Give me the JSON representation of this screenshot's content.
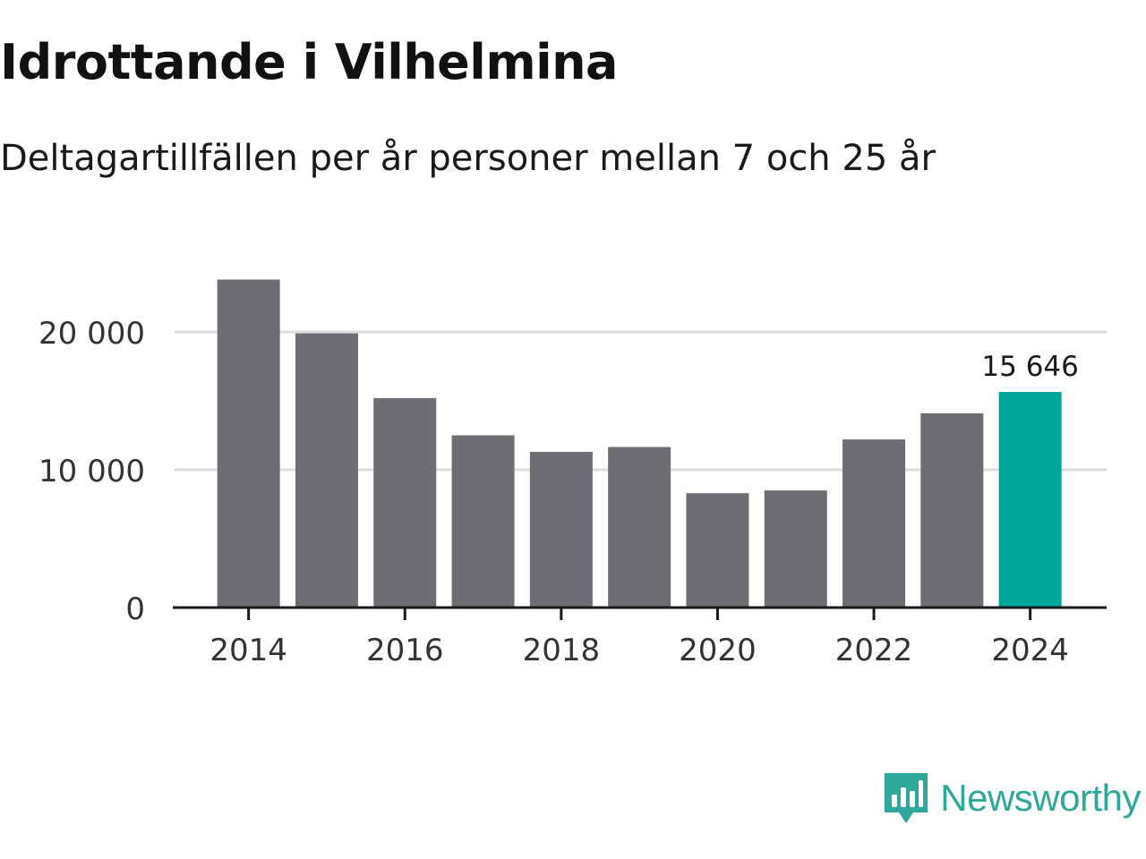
{
  "header": {
    "title": "Idrottande i Vilhelmina",
    "subtitle": "Deltagartillfällen per år personer mellan 7 och 25 år"
  },
  "brand": {
    "name": "Newsworthy",
    "icon": "newsworthy-logo-icon"
  },
  "colors": {
    "bar": "#6e6d73",
    "highlight": "#00a59a",
    "grid": "#dddddd",
    "axis": "#1a1a1a",
    "brand": "#2ea89a"
  },
  "chart_data": {
    "type": "bar",
    "title": "Idrottande i Vilhelmina",
    "subtitle": "Deltagartillfällen per år personer mellan 7 och 25 år",
    "xlabel": "",
    "ylabel": "",
    "categories": [
      "2014",
      "2015",
      "2016",
      "2017",
      "2018",
      "2019",
      "2020",
      "2021",
      "2022",
      "2023",
      "2024"
    ],
    "values": [
      23800,
      19900,
      15200,
      12500,
      11300,
      11650,
      8300,
      8500,
      12200,
      14100,
      15646
    ],
    "highlight_index": 10,
    "highlight_label": "15 646",
    "ylim": [
      0,
      25000
    ],
    "yticks": [
      {
        "value": 0,
        "label": "0"
      },
      {
        "value": 10000,
        "label": "10 000"
      },
      {
        "value": 20000,
        "label": "20 000"
      }
    ],
    "xticks": [
      "2014",
      "2016",
      "2018",
      "2020",
      "2022",
      "2024"
    ],
    "grid": true
  }
}
